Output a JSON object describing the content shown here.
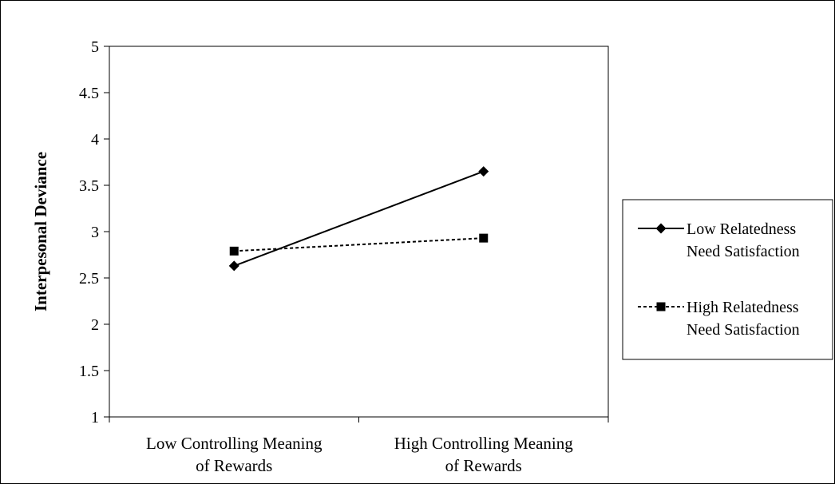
{
  "chart_data": {
    "type": "line",
    "title": "",
    "xlabel": "",
    "ylabel": "Interpesonal Deviance",
    "ylim": [
      1,
      5
    ],
    "yticks": [
      1,
      1.5,
      2,
      2.5,
      3,
      3.5,
      4,
      4.5,
      5
    ],
    "ytick_labels": [
      "1",
      "1.5",
      "2",
      "2.5",
      "3",
      "3.5",
      "4",
      "4.5",
      "5"
    ],
    "categories": [
      [
        "Low Controlling Meaning",
        "of Rewards"
      ],
      [
        "High Controlling Meaning",
        "of Rewards"
      ]
    ],
    "grid": false,
    "legend_position": "right",
    "series": [
      {
        "name": [
          "Low Relatedness",
          "Need Satisfaction"
        ],
        "values": [
          2.63,
          3.65
        ],
        "line_style": "solid",
        "marker": "diamond",
        "color": "#000000"
      },
      {
        "name": [
          "High Relatedness",
          "Need Satisfaction"
        ],
        "values": [
          2.79,
          2.93
        ],
        "line_style": "dashed",
        "marker": "square",
        "color": "#000000"
      }
    ]
  }
}
